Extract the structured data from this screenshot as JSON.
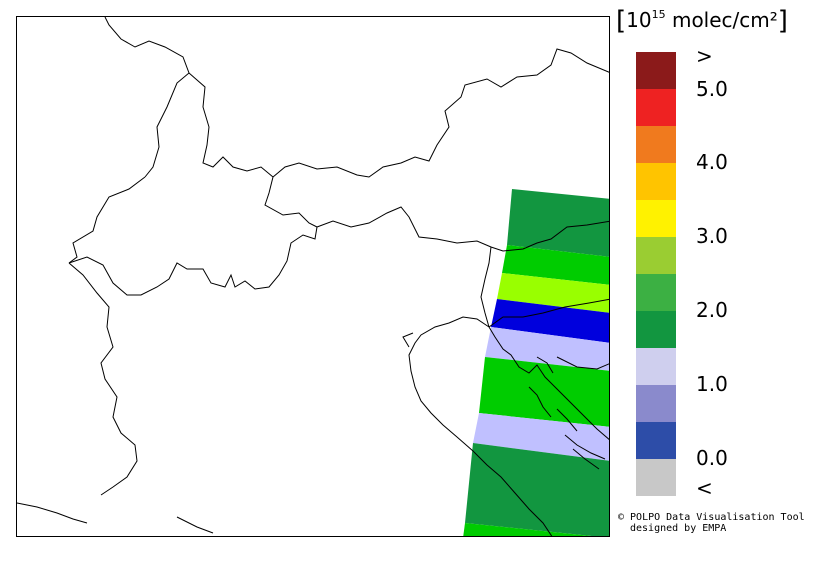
{
  "unit_label": {
    "open": "[",
    "base": "10",
    "exponent": "15",
    "text": " molec/cm²",
    "close": "]"
  },
  "legend": {
    "swatches": [
      {
        "color": "#8b1a1a"
      },
      {
        "color": "#ee2222"
      },
      {
        "color": "#f07a1e"
      },
      {
        "color": "#ffc400"
      },
      {
        "color": "#fff200"
      },
      {
        "color": "#9acd32"
      },
      {
        "color": "#3cb043"
      },
      {
        "color": "#129640"
      },
      {
        "color": "#cfcfee"
      },
      {
        "color": "#8a8acc"
      },
      {
        "color": "#2d4da8"
      },
      {
        "color": "#c8c8c8"
      }
    ],
    "labels": [
      ">",
      "5.0",
      "4.0",
      "3.0",
      "2.0",
      "1.0",
      "0.0",
      "<"
    ]
  },
  "credit": {
    "line1": "© POLPO Data Visualisation Tool",
    "line2": "designed by EMPA"
  },
  "swath_bands": [
    {
      "color": "#129640"
    },
    {
      "color": "#00cc00"
    },
    {
      "color": "#99ff00"
    },
    {
      "color": "#0000dd"
    },
    {
      "color": "#c0c0ff"
    },
    {
      "color": "#00cc00"
    },
    {
      "color": "#c0c0ff"
    },
    {
      "color": "#129640"
    },
    {
      "color": "#00cc00"
    }
  ]
}
